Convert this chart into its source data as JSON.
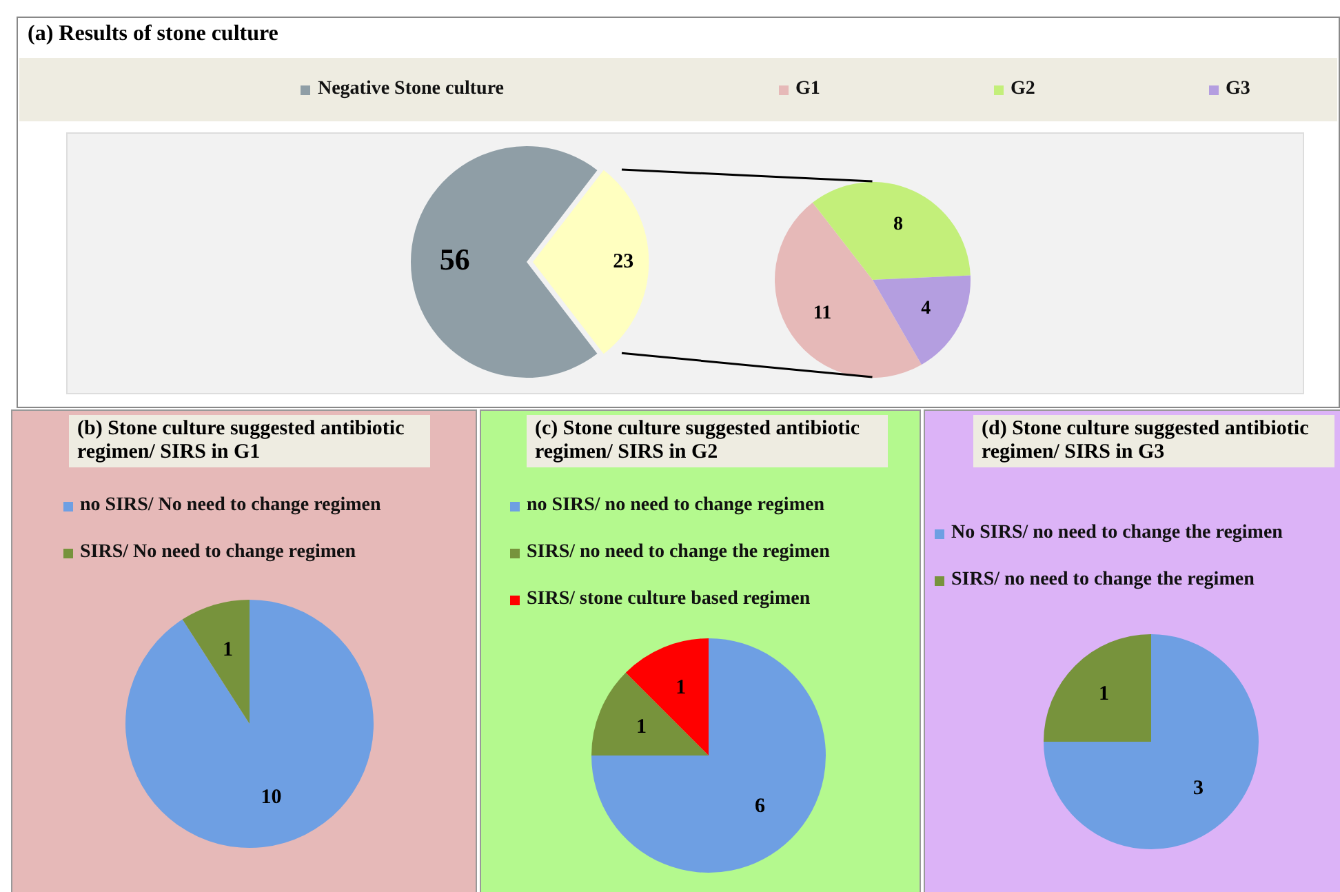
{
  "chart_data": [
    {
      "type": "pie",
      "title": "(a) Results of stone culture",
      "categories": [
        "Negative Stone culture",
        null
      ],
      "values": [
        56,
        23
      ],
      "colors": [
        "#8f9ea6",
        "#ffffc0"
      ],
      "data_labels": true,
      "legend": "top"
    },
    {
      "type": "pie",
      "categories": [
        "G1",
        "G2",
        "G3"
      ],
      "values": [
        11,
        8,
        4
      ],
      "colors": [
        "#e6b9b8",
        "#c3ef7a",
        "#b49ee0"
      ],
      "data_labels": true,
      "legend": "top"
    },
    {
      "type": "pie",
      "title": "(b) Stone culture suggested antibiotic regimen/ SIRS in G1",
      "categories": [
        "no SIRS/ No need to change regimen",
        "SIRS/ No need to change regimen"
      ],
      "values": [
        10,
        1
      ],
      "colors": [
        "#6e9fe3",
        "#77933c"
      ],
      "data_labels": true,
      "legend": "top"
    },
    {
      "type": "pie",
      "title": "(c) Stone culture suggested antibiotic regimen/ SIRS in G2",
      "categories": [
        "no SIRS/ no need to change regimen",
        "SIRS/ no need to change the regimen",
        "SIRS/ stone culture based regimen"
      ],
      "values": [
        6,
        1,
        1
      ],
      "colors": [
        "#6e9fe3",
        "#77933c",
        "#ff0000"
      ],
      "data_labels": true,
      "legend": "top"
    },
    {
      "type": "pie",
      "title": "(d) Stone culture suggested antibiotic regimen/ SIRS in G3",
      "categories": [
        "No SIRS/ no need to change the regimen",
        "SIRS/ no need to change the regimen"
      ],
      "values": [
        3,
        1
      ],
      "colors": [
        "#6e9fe3",
        "#77933c"
      ],
      "data_labels": true,
      "legend": "top"
    }
  ]
}
